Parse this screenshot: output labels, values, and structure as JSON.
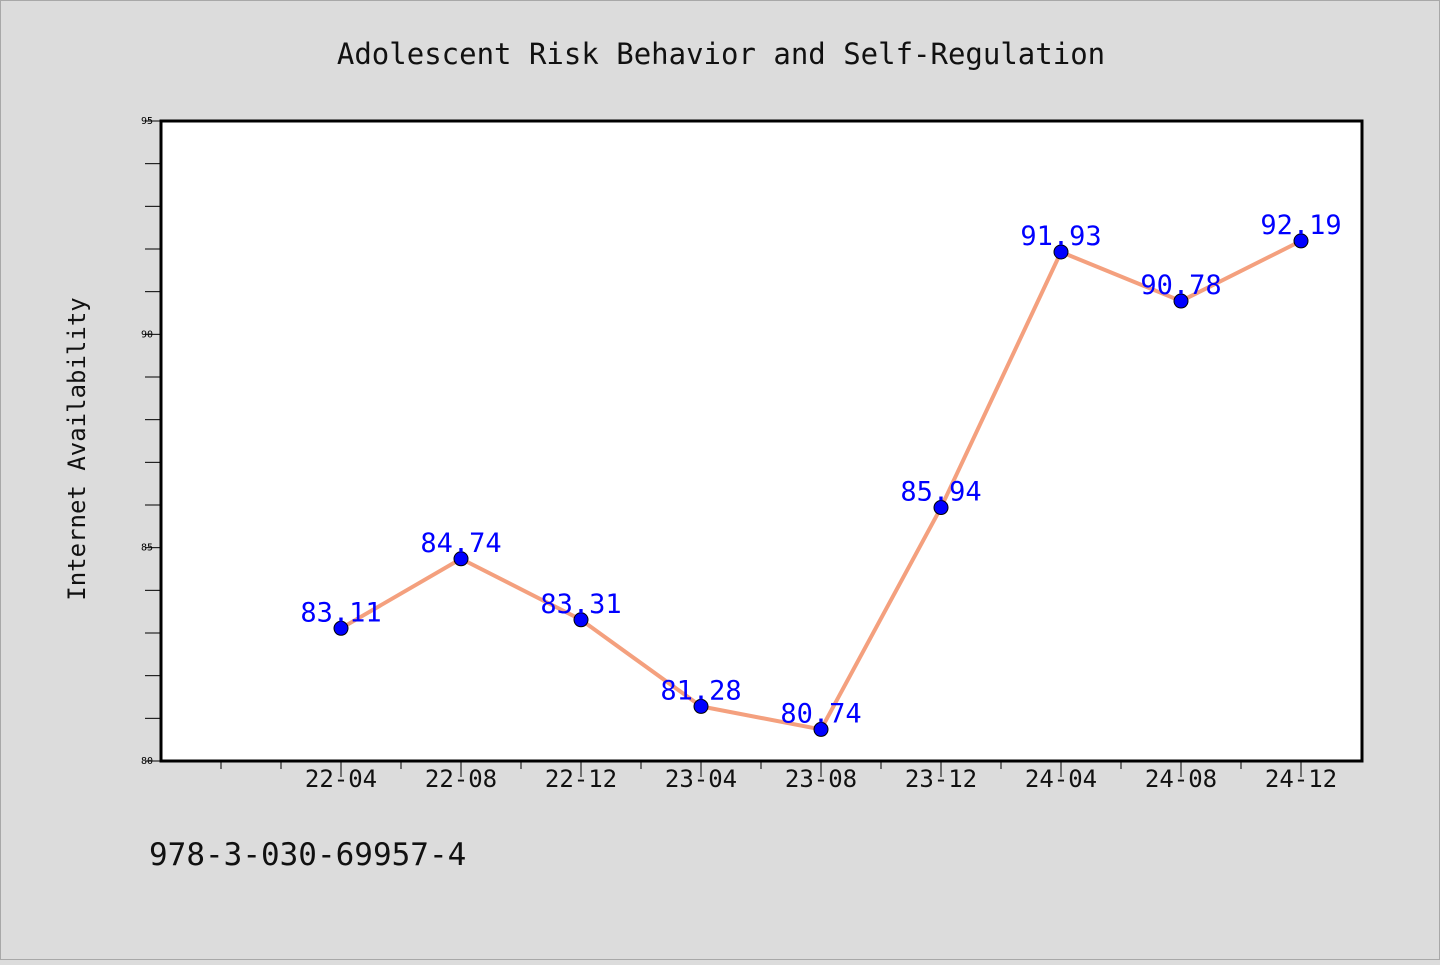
{
  "chart_data": {
    "type": "line",
    "title": "Adolescent Risk Behavior and Self-Regulation",
    "xlabel": "",
    "ylabel": "Internet Availability",
    "categories": [
      "22-04",
      "22-08",
      "22-12",
      "23-04",
      "23-08",
      "23-12",
      "24-04",
      "24-08",
      "24-12"
    ],
    "values": [
      83.11,
      84.74,
      83.31,
      81.28,
      80.74,
      85.94,
      91.93,
      90.78,
      92.19
    ],
    "data_labels": [
      "83.11",
      "84.74",
      "83.31",
      "81.28",
      "80.74",
      "85.94",
      "91.93",
      "90.78",
      "92.19"
    ],
    "ylim": [
      80,
      95
    ],
    "yticks": [
      "80",
      "85",
      "90",
      "95"
    ],
    "grid": false,
    "line_color": "#f4a07e",
    "marker_color": "#0000ff",
    "label_color": "#0000ff"
  },
  "footer": {
    "isbn": "978-3-030-69957-4"
  }
}
